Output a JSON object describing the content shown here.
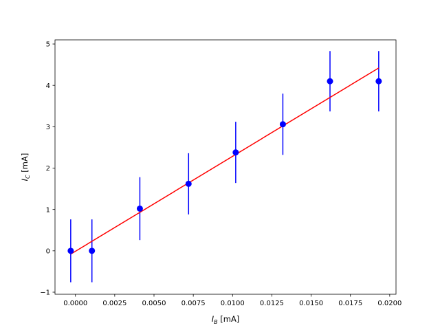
{
  "chart_data": {
    "type": "scatter",
    "title": "",
    "xlabel": {
      "symbol": "I",
      "subscript": "B",
      "unit": " [mA]"
    },
    "ylabel": {
      "symbol": "I",
      "subscript": "C",
      "unit": " [mA]"
    },
    "xlim": [
      -0.0013,
      0.0204
    ],
    "ylim": [
      -1.05,
      5.1
    ],
    "xticks": [
      0.0,
      0.0025,
      0.005,
      0.0075,
      0.01,
      0.0125,
      0.015,
      0.0175,
      0.02
    ],
    "xtick_labels": [
      "0.0000",
      "0.0025",
      "0.0050",
      "0.0075",
      "0.0100",
      "0.0125",
      "0.0150",
      "0.0175",
      "0.0200"
    ],
    "yticks": [
      -1,
      0,
      1,
      2,
      3,
      4,
      5
    ],
    "ytick_labels": [
      "−1",
      "0",
      "1",
      "2",
      "3",
      "4",
      "5"
    ],
    "grid": false,
    "series": [
      {
        "type": "errorbar",
        "color": "#0000ff",
        "marker": "circle",
        "x": [
          -0.0003,
          0.00105,
          0.0041,
          0.0072,
          0.0102,
          0.0132,
          0.0162,
          0.0193
        ],
        "y": [
          0.0,
          0.0,
          1.02,
          1.62,
          2.38,
          3.06,
          4.1,
          4.1
        ],
        "yerr": [
          0.76,
          0.76,
          0.76,
          0.74,
          0.74,
          0.74,
          0.73,
          0.73
        ]
      },
      {
        "type": "line",
        "color": "#ff0000",
        "x": [
          -0.0003,
          0.0193
        ],
        "y": [
          -0.08,
          4.42
        ]
      }
    ]
  }
}
